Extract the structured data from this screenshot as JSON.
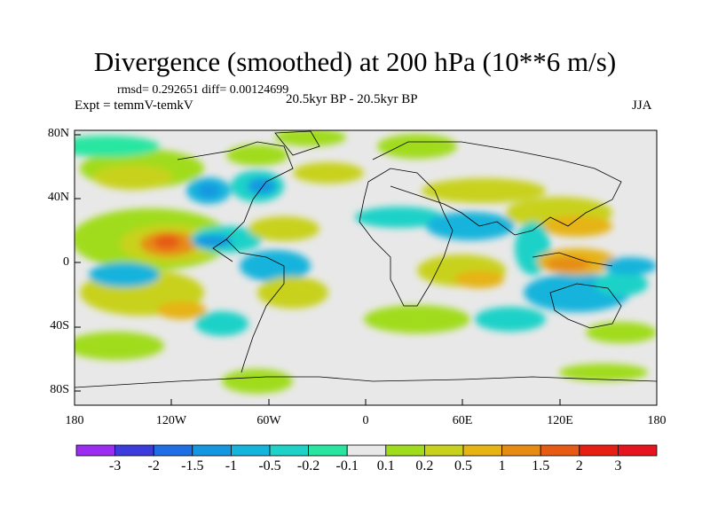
{
  "header": {
    "title": "Divergence (smoothed) at 200 hPa (10**6 m/s)",
    "stats": "rmsd= 0.292651  diff= 0.00124699",
    "experiment": "Expt = temmV-temkV",
    "period": "20.5kyr BP - 20.5kyr BP",
    "season": "JJA"
  },
  "axes": {
    "lat_ticks": [
      "80N",
      "40N",
      "0",
      "40S",
      "80S"
    ],
    "lon_ticks": [
      "180",
      "120W",
      "60W",
      "0",
      "60E",
      "120E",
      "180"
    ]
  },
  "colorbar": {
    "labels": [
      "-3",
      "-2",
      "-1.5",
      "-1",
      "-0.5",
      "-0.2",
      "-0.1",
      "0.1",
      "0.2",
      "0.5",
      "1",
      "1.5",
      "2",
      "3"
    ],
    "colors": [
      "#9b2df0",
      "#3c3cdc",
      "#1e6ee6",
      "#1496e1",
      "#14b4dc",
      "#1ed2c8",
      "#28e6a0",
      "#e8e8e8",
      "#a0dc1e",
      "#c8d21e",
      "#e6b414",
      "#e68c14",
      "#e65a14",
      "#e61e14",
      "#e6141e"
    ]
  },
  "colors": {
    "background": "#e8e8e8",
    "coast": "#000000"
  }
}
